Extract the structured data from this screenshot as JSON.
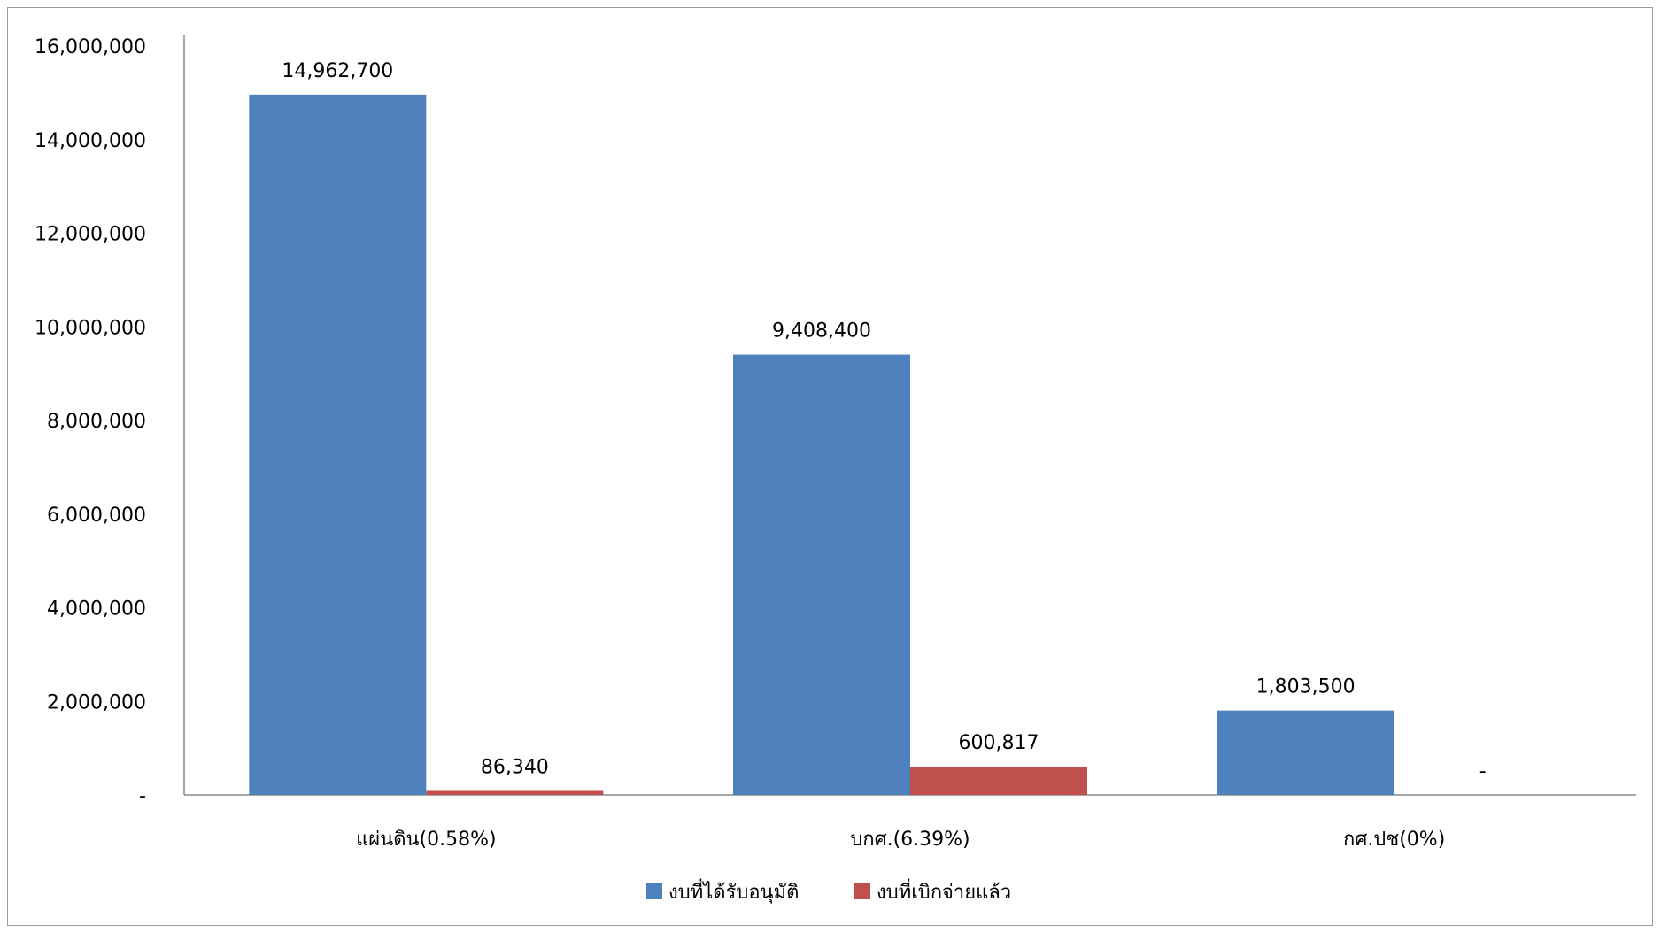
{
  "chart_data": {
    "type": "bar",
    "categories": [
      "แผ่นดิน(0.58%)",
      "บกศ.(6.39%)",
      "กศ.ปช(0%)"
    ],
    "series": [
      {
        "name": "งบที่ได้รับอนุมัติ",
        "color": "#4f81bd",
        "values": [
          14962700,
          9408400,
          1803500
        ],
        "labels": [
          "14,962,700",
          "9,408,400",
          "1,803,500"
        ]
      },
      {
        "name": "งบที่เบิกจ่ายแล้ว",
        "color": "#c0504d",
        "values": [
          86340,
          600817,
          0
        ],
        "labels": [
          "86,340",
          "600,817",
          "-"
        ]
      }
    ],
    "ylim": [
      0,
      16000000
    ],
    "yticks": [
      0,
      2000000,
      4000000,
      6000000,
      8000000,
      10000000,
      12000000,
      14000000,
      16000000
    ],
    "ytick_labels": [
      "-",
      "2,000,000",
      "4,000,000",
      "6,000,000",
      "8,000,000",
      "10,000,000",
      "12,000,000",
      "14,000,000",
      "16,000,000"
    ],
    "grid": false,
    "legend_position": "bottom",
    "title": "",
    "xlabel": "",
    "ylabel": ""
  }
}
